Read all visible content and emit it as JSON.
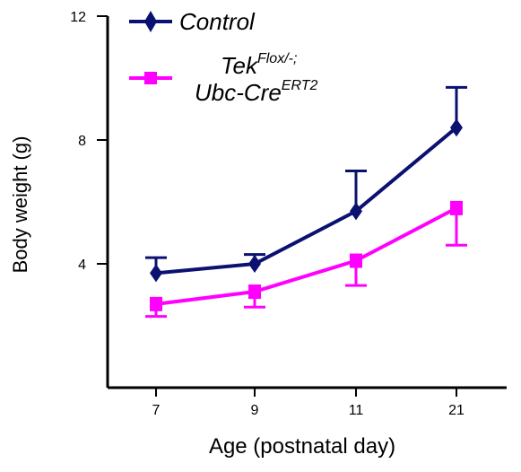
{
  "chart_data": {
    "type": "line",
    "title": "",
    "xlabel": "Age (postnatal day)",
    "ylabel": "Body weight (g)",
    "categories": [
      "7",
      "9",
      "11",
      "21"
    ],
    "ylim": [
      0,
      12
    ],
    "yticks": [
      4,
      8,
      12
    ],
    "grid": false,
    "legend_position": "top-left",
    "series": [
      {
        "name": "Control",
        "color": "#0b1170",
        "marker": "diamond",
        "values": [
          3.7,
          4.0,
          5.7,
          8.4
        ],
        "error_plus": [
          0.5,
          0.3,
          1.3,
          1.3
        ],
        "error_minus": [
          0,
          0,
          0,
          0
        ]
      },
      {
        "name_parts": [
          "Tek",
          "Flox/-;",
          "Ubc-Cre",
          "ERT2"
        ],
        "color": "#ff00ff",
        "marker": "square",
        "values": [
          2.7,
          3.1,
          4.1,
          5.8
        ],
        "error_plus": [
          0,
          0,
          0,
          0
        ],
        "error_minus": [
          0.4,
          0.5,
          0.8,
          1.2
        ]
      }
    ]
  }
}
